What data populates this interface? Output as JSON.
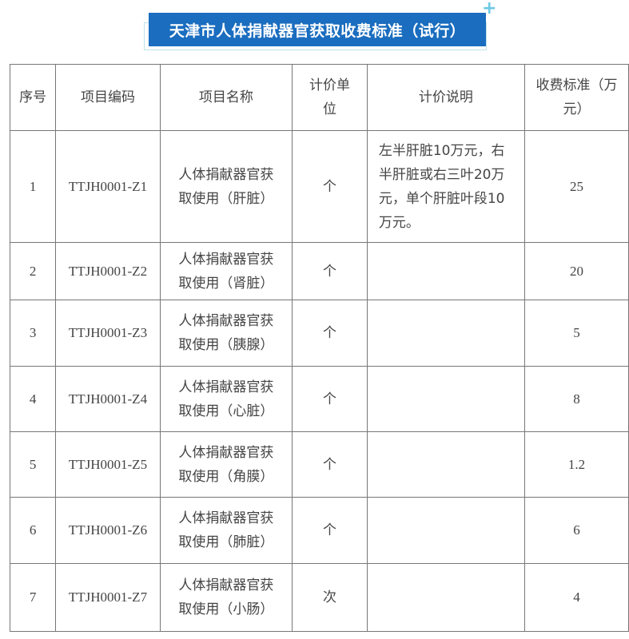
{
  "title": "天津市人体捐献器官获取收费标准（试行）",
  "headers": [
    "序号",
    "项目编码",
    "项目名称",
    "计价单位",
    "计价说明",
    "收费标准（万元）"
  ],
  "rows": [
    {
      "no": "1",
      "code": "TTJH0001-Z1",
      "name": "人体捐献器官获取使用（肝脏）",
      "unit": "个",
      "note": "左半肝脏10万元，右半肝脏或右三叶20万元，单个肝脏叶段10万元。",
      "fee": "25"
    },
    {
      "no": "2",
      "code": "TTJH0001-Z2",
      "name": "人体捐献器官获取使用（肾脏）",
      "unit": "个",
      "note": "",
      "fee": "20"
    },
    {
      "no": "3",
      "code": "TTJH0001-Z3",
      "name": "人体捐献器官获取使用（胰腺）",
      "unit": "个",
      "note": "",
      "fee": "5"
    },
    {
      "no": "4",
      "code": "TTJH0001-Z4",
      "name": "人体捐献器官获取使用（心脏）",
      "unit": "个",
      "note": "",
      "fee": "8"
    },
    {
      "no": "5",
      "code": "TTJH0001-Z5",
      "name": "人体捐献器官获取使用（角膜）",
      "unit": "个",
      "note": "",
      "fee": "1.2"
    },
    {
      "no": "6",
      "code": "TTJH0001-Z6",
      "name": "人体捐献器官获取使用（肺脏）",
      "unit": "个",
      "note": "",
      "fee": "6"
    },
    {
      "no": "7",
      "code": "TTJH0001-Z7",
      "name": "人体捐献器官获取使用（小肠）",
      "unit": "次",
      "note": "",
      "fee": "4"
    }
  ]
}
